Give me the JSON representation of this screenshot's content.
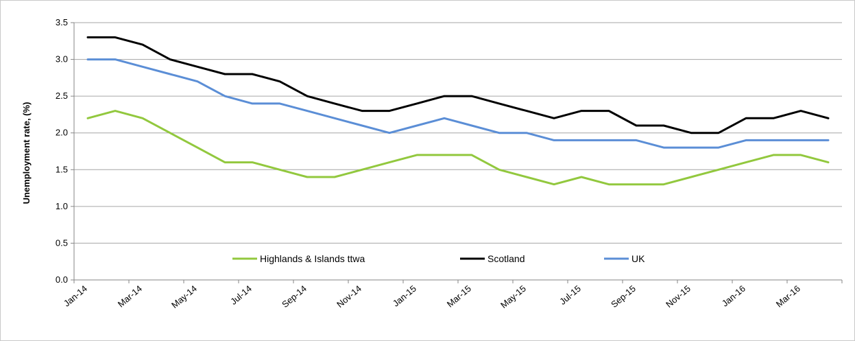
{
  "chart_data": {
    "type": "line",
    "title": "",
    "xlabel": "",
    "ylabel": "Unemployment rate, (%)",
    "ylim": [
      0,
      3.5
    ],
    "yticks": [
      0.0,
      0.5,
      1.0,
      1.5,
      2.0,
      2.5,
      3.0,
      3.5
    ],
    "ytick_labels": [
      "0.0",
      "0.5",
      "1.0",
      "1.5",
      "2.0",
      "2.5",
      "3.0",
      "3.5"
    ],
    "grid": "horizontal",
    "legend_placement": "bottom-center",
    "x": [
      "Jan-14",
      "Feb-14",
      "Mar-14",
      "Apr-14",
      "May-14",
      "Jun-14",
      "Jul-14",
      "Aug-14",
      "Sep-14",
      "Oct-14",
      "Nov-14",
      "Dec-14",
      "Jan-15",
      "Feb-15",
      "Mar-15",
      "Apr-15",
      "May-15",
      "Jun-15",
      "Jul-15",
      "Aug-15",
      "Sep-15",
      "Oct-15",
      "Nov-15",
      "Dec-15",
      "Jan-16",
      "Feb-16",
      "Mar-16",
      "Apr-16"
    ],
    "xtick_labels": [
      "Jan-14",
      "Mar-14",
      "May-14",
      "Jul-14",
      "Sep-14",
      "Nov-14",
      "Jan-15",
      "Mar-15",
      "May-15",
      "Jul-15",
      "Sep-15",
      "Nov-15",
      "Jan-16",
      "Mar-16"
    ],
    "series": [
      {
        "name": "Highlands & Islands ttwa",
        "color": "#92c83e",
        "values": [
          2.2,
          2.3,
          2.2,
          2.0,
          1.8,
          1.6,
          1.6,
          1.5,
          1.4,
          1.4,
          1.5,
          1.6,
          1.7,
          1.7,
          1.7,
          1.5,
          1.4,
          1.3,
          1.4,
          1.3,
          1.3,
          1.3,
          1.4,
          1.5,
          1.6,
          1.7,
          1.7,
          1.6
        ]
      },
      {
        "name": "Scotland",
        "color": "#000000",
        "values": [
          3.3,
          3.3,
          3.2,
          3.0,
          2.9,
          2.8,
          2.8,
          2.7,
          2.5,
          2.4,
          2.3,
          2.3,
          2.4,
          2.5,
          2.5,
          2.4,
          2.3,
          2.2,
          2.3,
          2.3,
          2.1,
          2.1,
          2.0,
          2.0,
          2.2,
          2.2,
          2.3,
          2.2
        ]
      },
      {
        "name": "UK",
        "color": "#5b8ed6",
        "values": [
          3.0,
          3.0,
          2.9,
          2.8,
          2.7,
          2.5,
          2.4,
          2.4,
          2.3,
          2.2,
          2.1,
          2.0,
          2.1,
          2.2,
          2.1,
          2.0,
          2.0,
          1.9,
          1.9,
          1.9,
          1.9,
          1.8,
          1.8,
          1.8,
          1.9,
          1.9,
          1.9,
          1.9
        ]
      }
    ]
  }
}
